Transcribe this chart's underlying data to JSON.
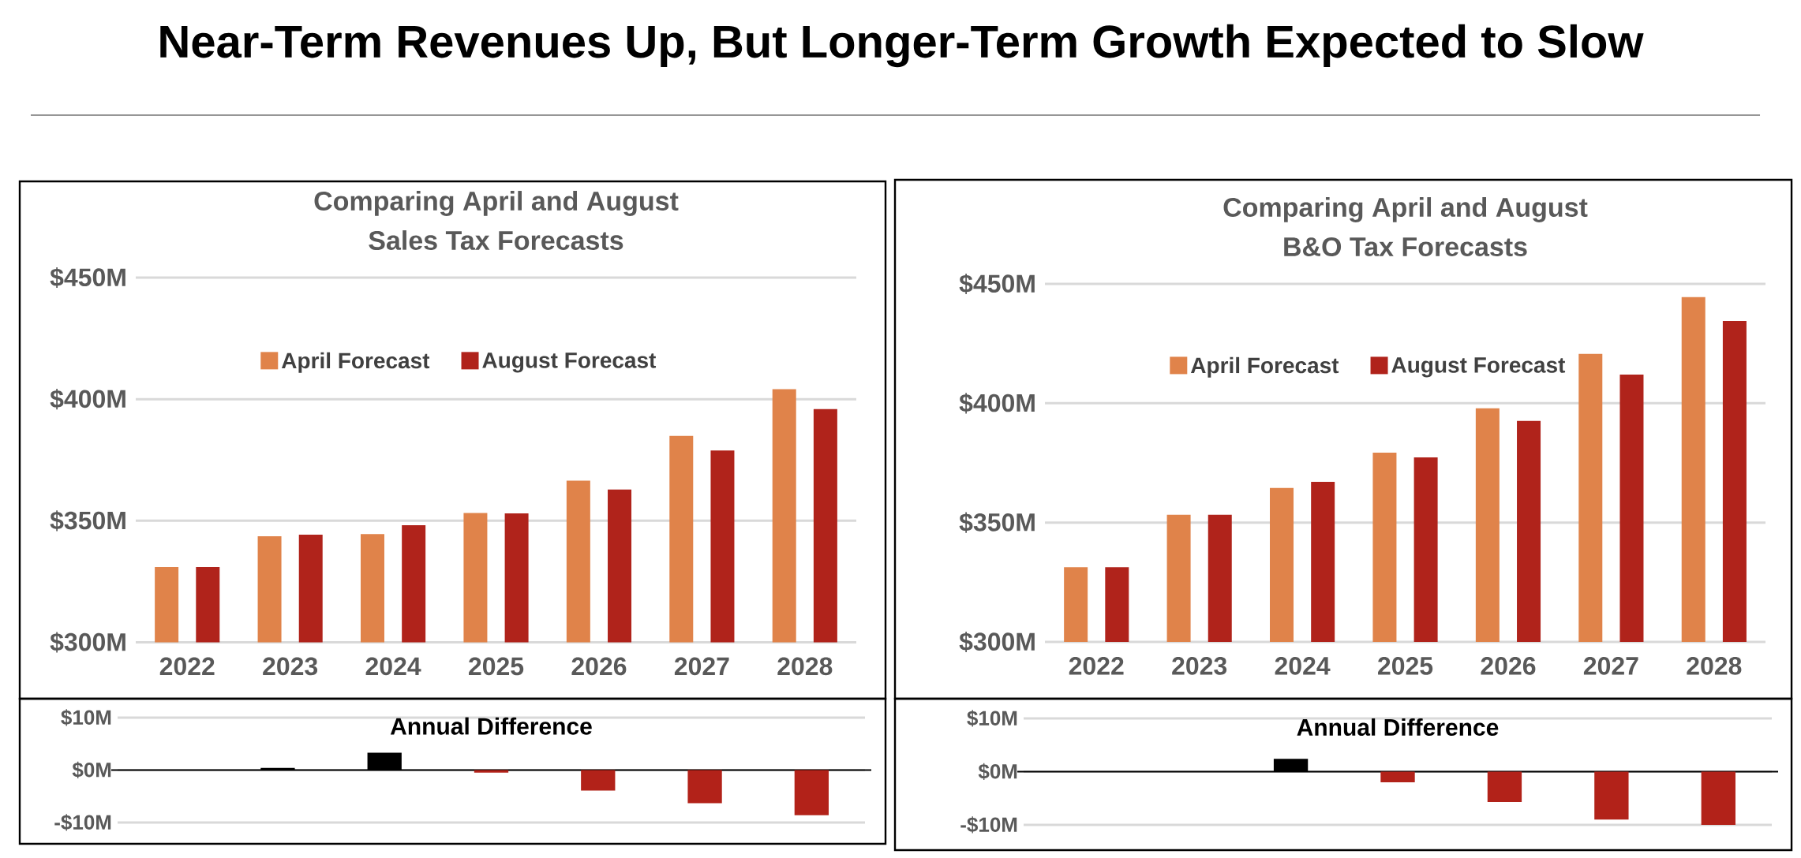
{
  "chart_data": [
    {
      "type": "bar",
      "title": "Comparing April and August",
      "subtitle": "Sales Tax Forecasts",
      "categories": [
        "2022",
        "2023",
        "2024",
        "2025",
        "2026",
        "2027",
        "2028"
      ],
      "series": [
        {
          "name": "April Forecast",
          "color": "#e0834a",
          "values": [
            331.0,
            343.6,
            344.5,
            353.2,
            366.5,
            384.9,
            404.1
          ]
        },
        {
          "name": "August Forecast",
          "color": "#b0231b",
          "values": [
            331.0,
            344.3,
            348.2,
            353.0,
            362.8,
            378.9,
            395.9
          ]
        }
      ],
      "ylim": [
        300,
        450
      ],
      "yticks": [
        {
          "value": 300,
          "label": "$300M"
        },
        {
          "value": 350,
          "label": "$350M"
        },
        {
          "value": 400,
          "label": "$400M"
        },
        {
          "value": 450,
          "label": "$450M"
        }
      ],
      "grid": "y",
      "legend": "top"
    },
    {
      "type": "bar",
      "title": "Comparing April and August",
      "subtitle": "B&O Tax Forecasts",
      "categories": [
        "2022",
        "2023",
        "2024",
        "2025",
        "2026",
        "2027",
        "2028"
      ],
      "series": [
        {
          "name": "April Forecast",
          "color": "#e0834a",
          "values": [
            331.3,
            353.3,
            364.5,
            379.3,
            397.9,
            420.7,
            444.5
          ]
        },
        {
          "name": "August Forecast",
          "color": "#b0231b",
          "values": [
            331.3,
            353.3,
            367.1,
            377.3,
            392.6,
            412.0,
            434.5
          ]
        }
      ],
      "ylim": [
        300,
        450
      ],
      "yticks": [
        {
          "value": 300,
          "label": "$300M"
        },
        {
          "value": 350,
          "label": "$350M"
        },
        {
          "value": 400,
          "label": "$400M"
        },
        {
          "value": 450,
          "label": "$450M"
        }
      ],
      "grid": "y",
      "legend": "top"
    },
    {
      "type": "bar",
      "title": "Annual Difference",
      "categories": [
        null,
        null,
        null,
        null,
        null,
        null,
        null
      ],
      "values": [
        0,
        0.4,
        3.3,
        -0.5,
        -3.9,
        -6.3,
        -8.6
      ],
      "colors": [
        "#000000",
        "#000000",
        "#000000",
        "#b22219",
        "#b22219",
        "#b22219",
        "#b22219"
      ],
      "ylim": [
        -10,
        10
      ],
      "yticks": [
        {
          "value": -10,
          "label": "-$10M"
        },
        {
          "value": 0,
          "label": "$0M"
        },
        {
          "value": 10,
          "label": "$10M"
        }
      ],
      "grid": "y",
      "tick_labels": "y"
    },
    {
      "type": "bar",
      "title": "Annual Difference",
      "categories": [
        null,
        null,
        null,
        null,
        null,
        null,
        null
      ],
      "values": [
        0,
        0,
        2.4,
        -2.0,
        -5.7,
        -9.0,
        -10.0
      ],
      "colors": [
        "#000000",
        "#000000",
        "#000000",
        "#b22219",
        "#b22219",
        "#b22219",
        "#b22219"
      ],
      "ylim": [
        -10,
        10
      ],
      "yticks": [
        {
          "value": -10,
          "label": "-$10M"
        },
        {
          "value": 0,
          "label": "$0M"
        },
        {
          "value": 10,
          "label": "$10M"
        }
      ],
      "grid": "y",
      "tick_labels": "y"
    },
    {
      "type": "other",
      "title": "Near-Term Revenues Up, But Longer-Term Growth Expected to Slow"
    }
  ]
}
